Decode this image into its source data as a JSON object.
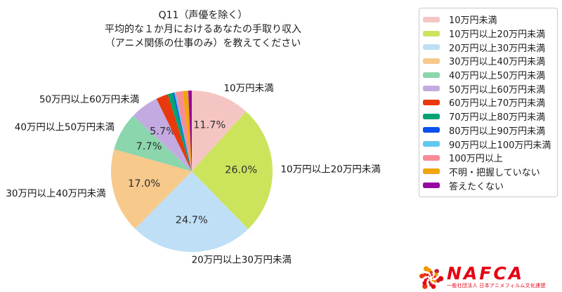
{
  "title": {
    "lines": [
      "Q11（声優を除く）",
      "平均的な１か月におけるあなたの手取り収入",
      "（アニメ関係の仕事のみ）を教えてください"
    ]
  },
  "chart_data": {
    "type": "pie",
    "title": "Q11（声優を除く）平均的な１か月におけるあなたの手取り収入（アニメ関係の仕事のみ）を教えてください",
    "start_angle": "12-oclock",
    "direction": "clockwise",
    "legend_position": "right",
    "slices": [
      {
        "label": "10万円未満",
        "value": 11.7,
        "pct_display": "11.7%",
        "color": "#F5C5C3",
        "labeled": true
      },
      {
        "label": "10万円以上20万円未満",
        "value": 26.0,
        "pct_display": "26.0%",
        "color": "#CCE45C",
        "labeled": true
      },
      {
        "label": "20万円以上30万円未満",
        "value": 24.7,
        "pct_display": "24.7%",
        "color": "#BEDFF6",
        "labeled": true
      },
      {
        "label": "30万円以上40万円未満",
        "value": 17.0,
        "pct_display": "17.0%",
        "color": "#F7C98B",
        "labeled": true
      },
      {
        "label": "40万円以上50万円未満",
        "value": 7.7,
        "pct_display": "7.7%",
        "color": "#8BD6AC",
        "labeled": true
      },
      {
        "label": "50万円以上60万円未満",
        "value": 5.7,
        "pct_display": "5.7%",
        "color": "#C3ABE1",
        "labeled": true
      },
      {
        "label": "60万円以上70万円未満",
        "value": 2.4,
        "color": "#E8380D",
        "labeled": false
      },
      {
        "label": "70万円以上80万円未満",
        "value": 1.0,
        "color": "#00A474",
        "labeled": false
      },
      {
        "label": "80万円以上90万円未満",
        "value": 0.3,
        "color": "#0B50EE",
        "labeled": false
      },
      {
        "label": "90万円以上100万円未満",
        "value": 0.3,
        "color": "#5FC8EF",
        "labeled": false
      },
      {
        "label": "100万円以上",
        "value": 1.4,
        "color": "#F88C96",
        "labeled": false
      },
      {
        "label": "不明・把握していない",
        "value": 1.1,
        "color": "#F0A50F",
        "labeled": false
      },
      {
        "label": "答えたくない",
        "value": 0.7,
        "color": "#9707A0",
        "labeled": false
      }
    ]
  },
  "logo": {
    "brand": "NAFCA",
    "tagline": "一般社団法人 日本アニメフィルム文化連盟",
    "brand_color": "#E50012",
    "swirl_colors": [
      "#E8380D",
      "#F39800",
      "#C81E32",
      "#E60012"
    ]
  }
}
